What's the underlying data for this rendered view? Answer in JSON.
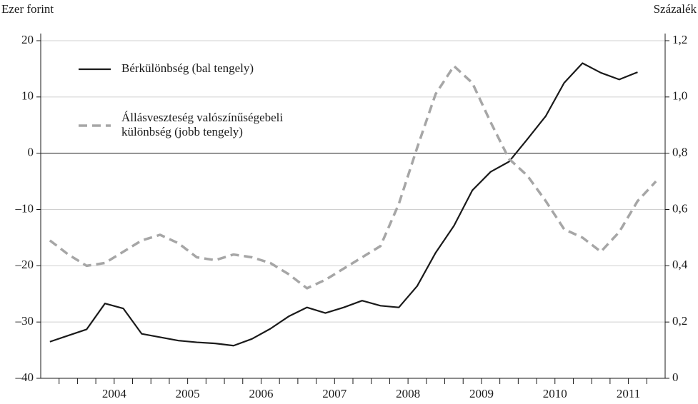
{
  "chart_data": {
    "type": "line",
    "y_label": "Ezer forint",
    "y2_label": "Százalék",
    "x": [
      2003.625,
      2003.875,
      2004.125,
      2004.375,
      2004.625,
      2004.875,
      2005.125,
      2005.375,
      2005.625,
      2005.875,
      2006.125,
      2006.375,
      2006.625,
      2006.875,
      2007.125,
      2007.375,
      2007.625,
      2007.875,
      2008.125,
      2008.375,
      2008.625,
      2008.875,
      2009.125,
      2009.375,
      2009.625,
      2009.875,
      2010.125,
      2010.375,
      2010.625,
      2010.875,
      2011.125,
      2011.375,
      2011.625,
      2011.875
    ],
    "xlim": [
      2003.5,
      2012
    ],
    "xticks": [
      {
        "value": 2004.5,
        "label": "2004"
      },
      {
        "value": 2005.5,
        "label": "2005"
      },
      {
        "value": 2006.5,
        "label": "2006"
      },
      {
        "value": 2007.5,
        "label": "2007"
      },
      {
        "value": 2008.5,
        "label": "2008"
      },
      {
        "value": 2009.5,
        "label": "2009"
      },
      {
        "value": 2010.5,
        "label": "2010"
      },
      {
        "value": 2011.5,
        "label": "2011"
      }
    ],
    "ylim": [
      -40,
      20
    ],
    "yticks": [
      {
        "value": -40,
        "label": "–40"
      },
      {
        "value": -30,
        "label": "–30"
      },
      {
        "value": -20,
        "label": "–20"
      },
      {
        "value": -10,
        "label": "–10"
      },
      0,
      10,
      20
    ],
    "y2lim": [
      0,
      1.2
    ],
    "y2ticks": [
      0,
      {
        "value": 0.2,
        "label": "0,2"
      },
      {
        "value": 0.4,
        "label": "0,4"
      },
      {
        "value": 0.6,
        "label": "0,6"
      },
      {
        "value": 0.8,
        "label": "0,8"
      },
      {
        "value": 1.0,
        "label": "1,0"
      },
      {
        "value": 1.2,
        "label": "1,2"
      }
    ],
    "grid": true,
    "series": [
      {
        "name": "Bérkülönbség (bal tengely)",
        "color": "#1a1a1a",
        "dash": false,
        "values": [
          -33.5,
          -32.4,
          -31.3,
          -26.7,
          -27.6,
          -32.1,
          -32.7,
          -33.3,
          -33.6,
          -33.8,
          -34.2,
          -33.0,
          -31.2,
          -29.0,
          -27.4,
          -28.4,
          -27.4,
          -26.2,
          -27.1,
          -27.4,
          -23.6,
          -17.7,
          -12.9,
          -6.6,
          -3.3,
          -1.5,
          2.5,
          6.6,
          12.5,
          16.0,
          14.3,
          13.1,
          14.4,
          null
        ]
      },
      {
        "name": "Állásveszteség valószínűségebeli különbség (jobb tengely)",
        "color": "#a6a6a6",
        "dash": true,
        "axis": "y2",
        "values": [
          0.49,
          0.44,
          0.4,
          0.41,
          0.45,
          0.49,
          0.51,
          0.48,
          0.43,
          0.42,
          0.44,
          0.43,
          0.41,
          0.37,
          0.32,
          0.35,
          0.39,
          0.43,
          0.47,
          0.62,
          0.82,
          1.01,
          1.11,
          1.05,
          0.91,
          0.78,
          0.72,
          0.63,
          0.53,
          0.5,
          0.45,
          0.52,
          0.63,
          0.7
        ]
      }
    ]
  }
}
